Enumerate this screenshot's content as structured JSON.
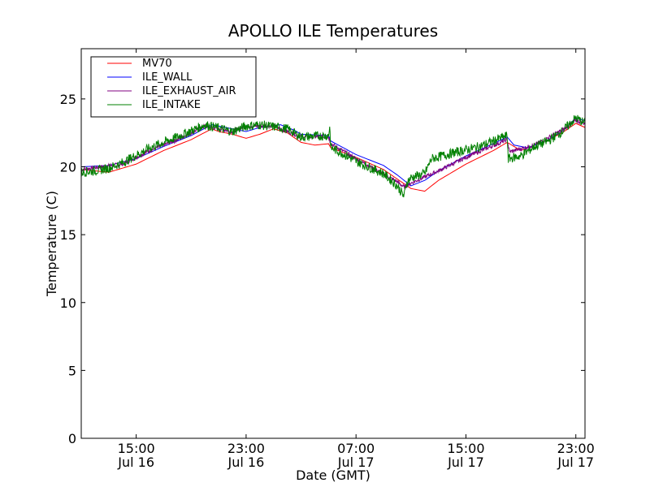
{
  "chart_data": {
    "type": "line",
    "title": "APOLLO ILE Temperatures",
    "xlabel": "Date (GMT)",
    "ylabel": "Temperature (C)",
    "xlim": [
      "2014-07-16T11:00",
      "2014-07-17T23:40"
    ],
    "ylim": [
      0,
      28.7
    ],
    "yticks": [
      0,
      5,
      10,
      15,
      20,
      25
    ],
    "xticks": [
      {
        "x": "2014-07-16T15:00",
        "time": "15:00",
        "date": "Jul 16"
      },
      {
        "x": "2014-07-16T23:00",
        "time": "23:00",
        "date": "Jul 16"
      },
      {
        "x": "2014-07-17T07:00",
        "time": "07:00",
        "date": "Jul 17"
      },
      {
        "x": "2014-07-17T15:00",
        "time": "15:00",
        "date": "Jul 17"
      },
      {
        "x": "2014-07-17T23:00",
        "time": "23:00",
        "date": "Jul 17"
      }
    ],
    "legend_placement": "top-left",
    "grid": false,
    "series": [
      {
        "name": "MV70",
        "color": "#ff0000",
        "noise": 0,
        "points": [
          [
            "2014-07-16T11:00",
            19.8
          ],
          [
            "2014-07-16T13:00",
            19.6
          ],
          [
            "2014-07-16T14:00",
            19.9
          ],
          [
            "2014-07-16T15:00",
            20.2
          ],
          [
            "2014-07-16T17:00",
            21.2
          ],
          [
            "2014-07-16T19:00",
            22.0
          ],
          [
            "2014-07-16T20:30",
            22.8
          ],
          [
            "2014-07-16T21:00",
            22.6
          ],
          [
            "2014-07-16T22:00",
            22.4
          ],
          [
            "2014-07-16T23:00",
            22.1
          ],
          [
            "2014-07-17T00:00",
            22.4
          ],
          [
            "2014-07-17T01:00",
            22.8
          ],
          [
            "2014-07-17T02:00",
            22.5
          ],
          [
            "2014-07-17T03:00",
            21.8
          ],
          [
            "2014-07-17T04:00",
            21.6
          ],
          [
            "2014-07-17T05:00",
            21.7
          ],
          [
            "2014-07-17T05:10",
            21.4
          ],
          [
            "2014-07-17T07:00",
            20.7
          ],
          [
            "2014-07-17T09:00",
            19.8
          ],
          [
            "2014-07-17T10:00",
            19.1
          ],
          [
            "2014-07-17T11:00",
            18.4
          ],
          [
            "2014-07-17T12:00",
            18.2
          ],
          [
            "2014-07-17T13:00",
            19.0
          ],
          [
            "2014-07-17T15:00",
            20.2
          ],
          [
            "2014-07-17T17:00",
            21.2
          ],
          [
            "2014-07-17T18:00",
            21.8
          ],
          [
            "2014-07-17T19:00",
            21.2
          ],
          [
            "2014-07-17T20:00",
            21.6
          ],
          [
            "2014-07-17T21:00",
            22.0
          ],
          [
            "2014-07-17T22:00",
            22.5
          ],
          [
            "2014-07-17T23:00",
            23.2
          ],
          [
            "2014-07-17T23:40",
            22.9
          ]
        ]
      },
      {
        "name": "ILE_WALL",
        "color": "#0000ff",
        "noise": 0,
        "points": [
          [
            "2014-07-16T11:00",
            20.0
          ],
          [
            "2014-07-16T13:00",
            20.1
          ],
          [
            "2014-07-16T15:00",
            20.6
          ],
          [
            "2014-07-16T17:00",
            21.5
          ],
          [
            "2014-07-16T19:00",
            22.3
          ],
          [
            "2014-07-16T20:30",
            23.1
          ],
          [
            "2014-07-16T22:00",
            22.8
          ],
          [
            "2014-07-16T23:00",
            22.6
          ],
          [
            "2014-07-17T00:00",
            22.9
          ],
          [
            "2014-07-17T01:30",
            23.1
          ],
          [
            "2014-07-17T02:30",
            22.7
          ],
          [
            "2014-07-17T03:00",
            22.4
          ],
          [
            "2014-07-17T05:00",
            22.3
          ],
          [
            "2014-07-17T05:10",
            21.9
          ],
          [
            "2014-07-17T07:00",
            20.9
          ],
          [
            "2014-07-17T09:00",
            20.1
          ],
          [
            "2014-07-17T10:00",
            19.4
          ],
          [
            "2014-07-17T11:00",
            18.6
          ],
          [
            "2014-07-17T12:00",
            19.0
          ],
          [
            "2014-07-17T13:00",
            19.7
          ],
          [
            "2014-07-17T15:00",
            20.8
          ],
          [
            "2014-07-17T17:00",
            21.7
          ],
          [
            "2014-07-17T18:00",
            22.2
          ],
          [
            "2014-07-17T18:30",
            21.6
          ],
          [
            "2014-07-17T19:30",
            21.4
          ],
          [
            "2014-07-17T21:00",
            22.0
          ],
          [
            "2014-07-17T22:00",
            22.6
          ],
          [
            "2014-07-17T23:00",
            23.6
          ],
          [
            "2014-07-17T23:40",
            23.4
          ]
        ]
      },
      {
        "name": "ILE_EXHAUST_AIR",
        "color": "#800080",
        "noise": 0.15,
        "points": [
          [
            "2014-07-16T11:00",
            19.8
          ],
          [
            "2014-07-16T14:00",
            20.2
          ],
          [
            "2014-07-16T16:00",
            21.2
          ],
          [
            "2014-07-16T18:00",
            22.0
          ],
          [
            "2014-07-16T20:00",
            23.0
          ],
          [
            "2014-07-16T22:00",
            22.6
          ],
          [
            "2014-07-16T23:00",
            23.0
          ],
          [
            "2014-07-17T01:00",
            23.0
          ],
          [
            "2014-07-17T03:00",
            22.2
          ],
          [
            "2014-07-17T05:00",
            22.2
          ],
          [
            "2014-07-17T05:10",
            21.7
          ],
          [
            "2014-07-17T07:00",
            20.6
          ],
          [
            "2014-07-17T10:00",
            18.9
          ],
          [
            "2014-07-17T10:30",
            18.5
          ],
          [
            "2014-07-17T11:00",
            18.8
          ],
          [
            "2014-07-17T13:00",
            19.7
          ],
          [
            "2014-07-17T15:00",
            20.7
          ],
          [
            "2014-07-17T18:00",
            22.0
          ],
          [
            "2014-07-17T18:10",
            21.1
          ],
          [
            "2014-07-17T20:00",
            21.6
          ],
          [
            "2014-07-17T22:00",
            22.7
          ],
          [
            "2014-07-17T23:00",
            23.4
          ],
          [
            "2014-07-17T23:40",
            23.2
          ]
        ]
      },
      {
        "name": "ILE_INTAKE",
        "color": "#008000",
        "noise": 0.35,
        "points": [
          [
            "2014-07-16T11:00",
            19.6
          ],
          [
            "2014-07-16T12:00",
            19.7
          ],
          [
            "2014-07-16T13:00",
            19.9
          ],
          [
            "2014-07-16T14:00",
            20.3
          ],
          [
            "2014-07-16T16:00",
            21.4
          ],
          [
            "2014-07-16T18:00",
            22.2
          ],
          [
            "2014-07-16T20:00",
            23.1
          ],
          [
            "2014-07-16T22:00",
            22.6
          ],
          [
            "2014-07-16T23:00",
            23.0
          ],
          [
            "2014-07-17T00:00",
            23.1
          ],
          [
            "2014-07-17T02:00",
            22.8
          ],
          [
            "2014-07-17T03:00",
            22.2
          ],
          [
            "2014-07-17T05:00",
            22.3
          ],
          [
            "2014-07-17T05:05",
            23.0
          ],
          [
            "2014-07-17T05:10",
            21.4
          ],
          [
            "2014-07-17T06:00",
            21.0
          ],
          [
            "2014-07-17T07:00",
            20.4
          ],
          [
            "2014-07-17T09:00",
            19.5
          ],
          [
            "2014-07-17T10:00",
            18.6
          ],
          [
            "2014-07-17T10:30",
            17.8
          ],
          [
            "2014-07-17T10:40",
            18.8
          ],
          [
            "2014-07-17T11:00",
            19.2
          ],
          [
            "2014-07-17T12:00",
            19.5
          ],
          [
            "2014-07-17T12:30",
            20.6
          ],
          [
            "2014-07-17T14:00",
            21.0
          ],
          [
            "2014-07-17T16:00",
            21.5
          ],
          [
            "2014-07-17T18:00",
            22.3
          ],
          [
            "2014-07-17T18:05",
            20.6
          ],
          [
            "2014-07-17T19:00",
            20.8
          ],
          [
            "2014-07-17T20:00",
            21.5
          ],
          [
            "2014-07-17T21:00",
            21.9
          ],
          [
            "2014-07-17T22:00",
            22.6
          ],
          [
            "2014-07-17T23:00",
            23.6
          ],
          [
            "2014-07-17T23:40",
            23.2
          ]
        ]
      }
    ]
  }
}
